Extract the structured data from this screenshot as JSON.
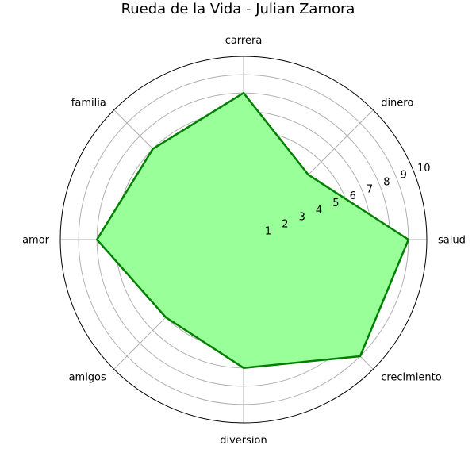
{
  "chart_data": {
    "type": "radar",
    "title": "Rueda de la Vida - Julian Zamora",
    "categories": [
      "salud",
      "dinero",
      "carrera",
      "familia",
      "amor",
      "amigos",
      "diversion",
      "crecimiento"
    ],
    "series": [
      {
        "values": [
          9,
          5,
          8,
          7,
          8,
          6,
          7,
          9
        ]
      }
    ],
    "radial_range": [
      0,
      10
    ],
    "radial_ticks": [
      1,
      2,
      3,
      4,
      5,
      6,
      7,
      8,
      9,
      10
    ],
    "grid": true,
    "colors": {
      "fill": "#99ff99",
      "line": "#008000",
      "grid": "#b0b0b0",
      "frame": "#000000"
    }
  }
}
